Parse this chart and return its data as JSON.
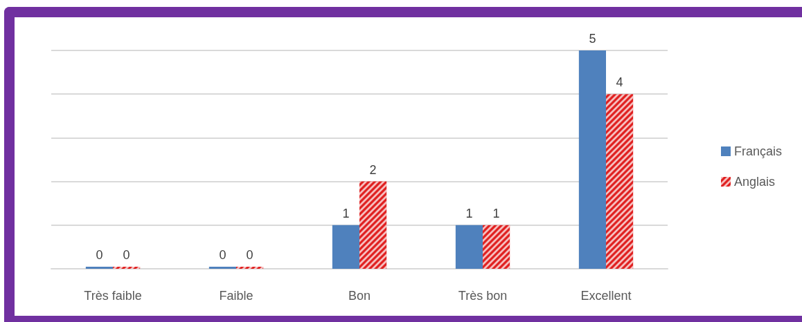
{
  "chart_data": {
    "type": "bar",
    "categories": [
      "Très faible",
      "Faible",
      "Bon",
      "Très bon",
      "Excellent"
    ],
    "series": [
      {
        "name": "Français",
        "color": "#4f81bd",
        "values": [
          0,
          0,
          1,
          1,
          5
        ]
      },
      {
        "name": "Anglais",
        "color": "#e02020",
        "values": [
          0,
          0,
          2,
          1,
          4
        ]
      }
    ],
    "ylim": [
      0,
      5
    ],
    "yticks": [
      {
        "value": 0,
        "label": null
      },
      {
        "value": 1,
        "label": null
      },
      {
        "value": 2,
        "label": null
      },
      {
        "value": 3,
        "label": null
      },
      {
        "value": 4,
        "label": null
      },
      {
        "value": 5,
        "label": null
      }
    ],
    "tick_labels": "x",
    "grid": "y",
    "legend": "right",
    "data_labels": true
  }
}
